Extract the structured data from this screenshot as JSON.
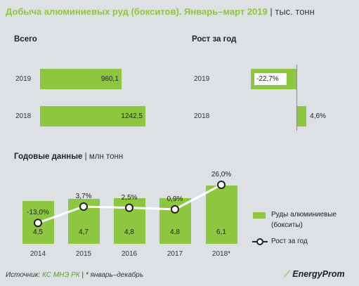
{
  "title": "Добыча алюминиевых руд (бокситов). Январь–март 2019",
  "unit": "тыс. тонн",
  "sections": {
    "total_title": "Всего",
    "growth_title": "Рост за год",
    "annual_title": "Годовые данные",
    "annual_unit": "млн тонн"
  },
  "legend": {
    "bars": "Руды алюминиевые (бокситы)",
    "line": "Рост за год"
  },
  "footer": {
    "source_label": "Источник:",
    "source": "КС МНЭ РК",
    "note": "* январь–декабрь",
    "logo": "EnergyProm"
  },
  "colors": {
    "accent": "#8dc63f",
    "bg": "#dde1e4"
  },
  "chart_data": [
    {
      "type": "bar",
      "orientation": "horizontal",
      "title": "Всего",
      "categories": [
        "2019",
        "2018"
      ],
      "values": [
        960.1,
        1242.5
      ],
      "value_labels": [
        "960,1",
        "1242,5"
      ]
    },
    {
      "type": "bar",
      "orientation": "horizontal",
      "title": "Рост за год",
      "categories": [
        "2019",
        "2018"
      ],
      "values": [
        -22.7,
        4.6
      ],
      "value_labels": [
        "-22,7%",
        "4,6%"
      ]
    },
    {
      "type": "bar",
      "title": "Годовые данные",
      "categories": [
        "2014",
        "2015",
        "2016",
        "2017",
        "2018*"
      ],
      "series": [
        {
          "name": "Руды алюминиевые (бокситы)",
          "type": "bar",
          "values": [
            4.5,
            4.7,
            4.8,
            4.8,
            6.1
          ],
          "labels": [
            "4,5",
            "4,7",
            "4,8",
            "4,8",
            "6,1"
          ]
        },
        {
          "name": "Рост за год",
          "type": "line",
          "values": [
            -13.0,
            3.7,
            2.5,
            0.9,
            26.0
          ],
          "labels": [
            "-13,0%",
            "3,7%",
            "2,5%",
            "0,9%",
            "26,0%"
          ]
        }
      ]
    }
  ]
}
